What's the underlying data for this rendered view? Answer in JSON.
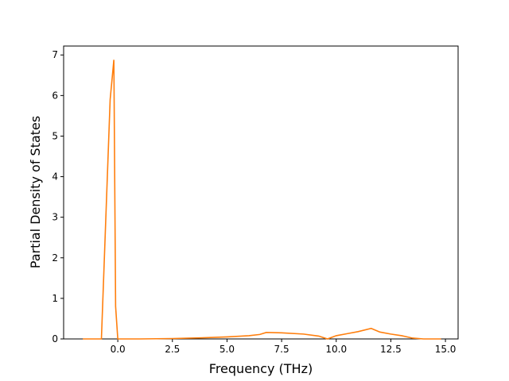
{
  "chart_data": {
    "type": "line",
    "x_label": "Frequency (THz)",
    "y_label": "Partial Density of States",
    "x": [
      -1.6,
      -0.75,
      -0.35,
      -0.18,
      -0.1,
      0.0,
      1.0,
      2.5,
      4.0,
      5.0,
      6.0,
      6.5,
      6.8,
      7.5,
      8.5,
      9.2,
      9.6,
      10.0,
      10.5,
      11.0,
      11.6,
      12.0,
      12.5,
      13.0,
      13.5,
      14.0,
      14.8
    ],
    "series": [
      {
        "color": "#ff7f0e",
        "values": [
          0,
          0,
          5.9,
          6.88,
          0.8,
          0,
          0,
          0.01,
          0.03,
          0.05,
          0.08,
          0.11,
          0.16,
          0.15,
          0.12,
          0.07,
          0,
          0.08,
          0.13,
          0.18,
          0.26,
          0.17,
          0.12,
          0.08,
          0.02,
          0,
          0
        ]
      }
    ],
    "xlim": [
      -2.48,
      15.58
    ],
    "ylim": [
      0,
      7.22
    ],
    "xticks": [
      {
        "value": 0,
        "label": "0.0"
      },
      2.5,
      {
        "value": 5,
        "label": "5.0"
      },
      7.5,
      {
        "value": 10,
        "label": "10.0"
      },
      12.5,
      {
        "value": 15,
        "label": "15.0"
      }
    ],
    "yticks": [
      0,
      1,
      2,
      3,
      4,
      5,
      6,
      7
    ]
  }
}
